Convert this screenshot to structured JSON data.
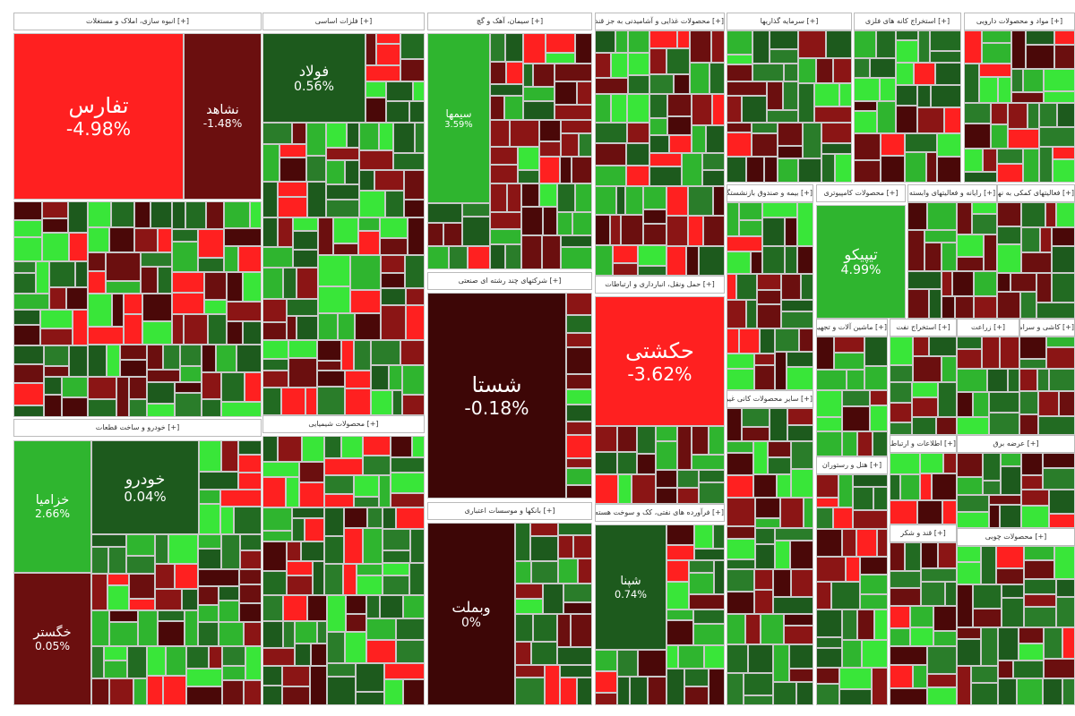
{
  "sectors": [
    {
      "title": "[+] انبوه سازی، املاک و مستغلات",
      "tiles": [
        {
          "symbol": "تفارس",
          "change": "-4.98%"
        },
        {
          "symbol": "نشاهد",
          "change": "-1.48%"
        }
      ]
    },
    {
      "title": "[+] فلزات اساسی",
      "tiles": [
        {
          "symbol": "فولاد",
          "change": "0.56%"
        }
      ]
    },
    {
      "title": "[+] سیمان، آهک و گچ",
      "tiles": [
        {
          "symbol": "سیمها",
          "change": "3.59%"
        }
      ]
    },
    {
      "title": "[+] محصولات غذایی و آشامیدنی به جز قند",
      "tiles": []
    },
    {
      "title": "[+] سرمایه گذاریها",
      "tiles": []
    },
    {
      "title": "[+] استخراج کانه های فلزی",
      "tiles": []
    },
    {
      "title": "[+] مواد و محصولات دارویی",
      "tiles": []
    },
    {
      "title": "[+] خودرو و ساخت قطعات",
      "tiles": [
        {
          "symbol": "خودرو",
          "change": "0.04%"
        },
        {
          "symbol": "خزامیا",
          "change": "2.66%"
        },
        {
          "symbol": "خگستر",
          "change": "0.05%"
        }
      ]
    },
    {
      "title": "[+] محصولات شیمیایی",
      "tiles": []
    },
    {
      "title": "[+] شرکتهای چند رشته ای صنعتی",
      "tiles": [
        {
          "symbol": "شستا",
          "change": "-0.18%"
        }
      ]
    },
    {
      "title": "[+] حمل ونقل، انبارداری و ارتباطات",
      "tiles": [
        {
          "symbol": "حکشتی",
          "change": "-3.62%"
        }
      ]
    },
    {
      "title": "[+] بانکها و موسسات اعتباری",
      "tiles": [
        {
          "symbol": "وبملت",
          "change": "0%"
        }
      ]
    },
    {
      "title": "[+] فرآورده های نفتی، کک و سوخت هسته ای",
      "tiles": [
        {
          "symbol": "شپنا",
          "change": "0.74%"
        }
      ]
    },
    {
      "title": "[+] بیمه و صندوق بازنشستگی",
      "tiles": []
    },
    {
      "title": "[+] محصولات کامپیوتری",
      "tiles": [
        {
          "symbol": "تیپیکو",
          "change": "4.99%"
        }
      ]
    },
    {
      "title": "[+] رایانه و فعالیتهای وابسته",
      "tiles": []
    },
    {
      "title": "[+] فعالیتهای کمکی به نهادهای مالی",
      "tiles": []
    },
    {
      "title": "[+] سایر محصولات کانی غیرفلزی",
      "tiles": []
    },
    {
      "title": "[+] ماشین آلات و تجهیزات",
      "tiles": []
    },
    {
      "title": "[+] استخراج نفت",
      "tiles": []
    },
    {
      "title": "[+] زراعت",
      "tiles": []
    },
    {
      "title": "[+] کاشی و سرامیک",
      "tiles": []
    },
    {
      "title": "[+] هتل و رستوران",
      "tiles": []
    },
    {
      "title": "[+] اطلاعات و ارتباطات",
      "tiles": []
    },
    {
      "title": "[+] عرضه برق",
      "tiles": []
    },
    {
      "title": "[+] قند و شکر",
      "tiles": []
    },
    {
      "title": "[+] محصولات چوبی",
      "tiles": []
    }
  ]
}
